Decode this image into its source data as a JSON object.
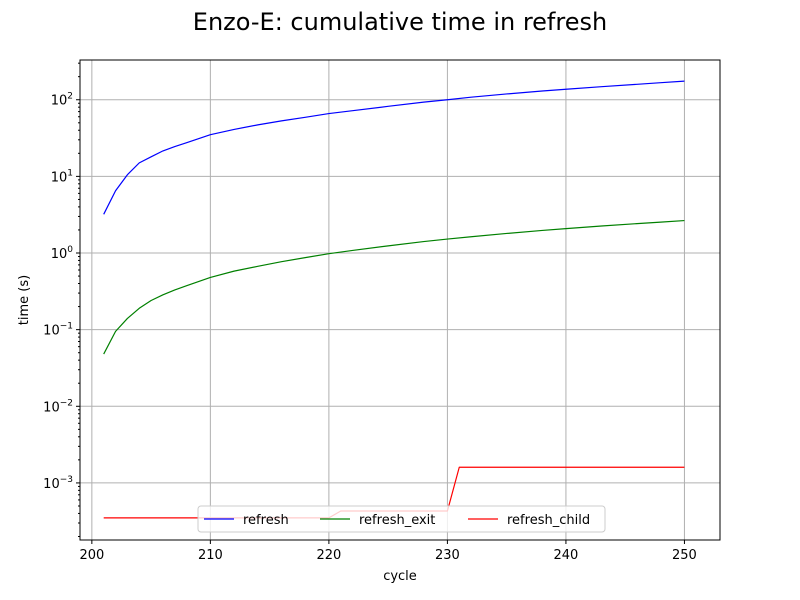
{
  "chart_data": {
    "type": "line",
    "title": "Enzo-E: cumulative time in refresh",
    "xlabel": "cycle",
    "ylabel": "time (s)",
    "xlim": [
      199,
      253
    ],
    "ylim": [
      0.00018,
      330
    ],
    "yscale": "log",
    "grid": true,
    "legend_position": "lower-center",
    "xticks": [
      200,
      210,
      220,
      230,
      240,
      250
    ],
    "yticks": [
      {
        "value": 0.001,
        "base": "10",
        "exp": "−3"
      },
      {
        "value": 0.01,
        "base": "10",
        "exp": "−2"
      },
      {
        "value": 0.1,
        "base": "10",
        "exp": "−1"
      },
      {
        "value": 1,
        "base": "10",
        "exp": "0"
      },
      {
        "value": 10,
        "base": "10",
        "exp": "1"
      },
      {
        "value": 100,
        "base": "10",
        "exp": "2"
      }
    ],
    "series": [
      {
        "name": "refresh",
        "color": "#0000ff",
        "x": [
          201,
          202,
          203,
          204,
          205,
          206,
          207,
          208,
          210,
          212,
          214,
          216,
          218,
          220,
          222,
          225,
          228,
          230,
          232,
          235,
          238,
          240,
          243,
          246,
          248,
          250
        ],
        "y": [
          3.2,
          6.5,
          10.5,
          15,
          18,
          21.5,
          24.5,
          27.5,
          35,
          41,
          47,
          53,
          59,
          66,
          72,
          82,
          93,
          100,
          108,
          119,
          130,
          137,
          148,
          159,
          167,
          175
        ]
      },
      {
        "name": "refresh_exit",
        "color": "#008000",
        "x": [
          201,
          202,
          203,
          204,
          205,
          206,
          207,
          208,
          210,
          212,
          214,
          216,
          218,
          220,
          222,
          225,
          228,
          230,
          232,
          235,
          238,
          240,
          243,
          246,
          248,
          250
        ],
        "y": [
          0.048,
          0.095,
          0.14,
          0.19,
          0.24,
          0.285,
          0.33,
          0.375,
          0.48,
          0.58,
          0.67,
          0.77,
          0.87,
          0.98,
          1.08,
          1.24,
          1.41,
          1.52,
          1.63,
          1.8,
          1.97,
          2.08,
          2.25,
          2.42,
          2.53,
          2.65
        ]
      },
      {
        "name": "refresh_child",
        "color": "#ff0000",
        "x": [
          201,
          210,
          220,
          221,
          230,
          231,
          240,
          250
        ],
        "y": [
          0.00035,
          0.00035,
          0.00035,
          0.00043,
          0.00043,
          0.0016,
          0.0016,
          0.0016
        ]
      }
    ]
  }
}
